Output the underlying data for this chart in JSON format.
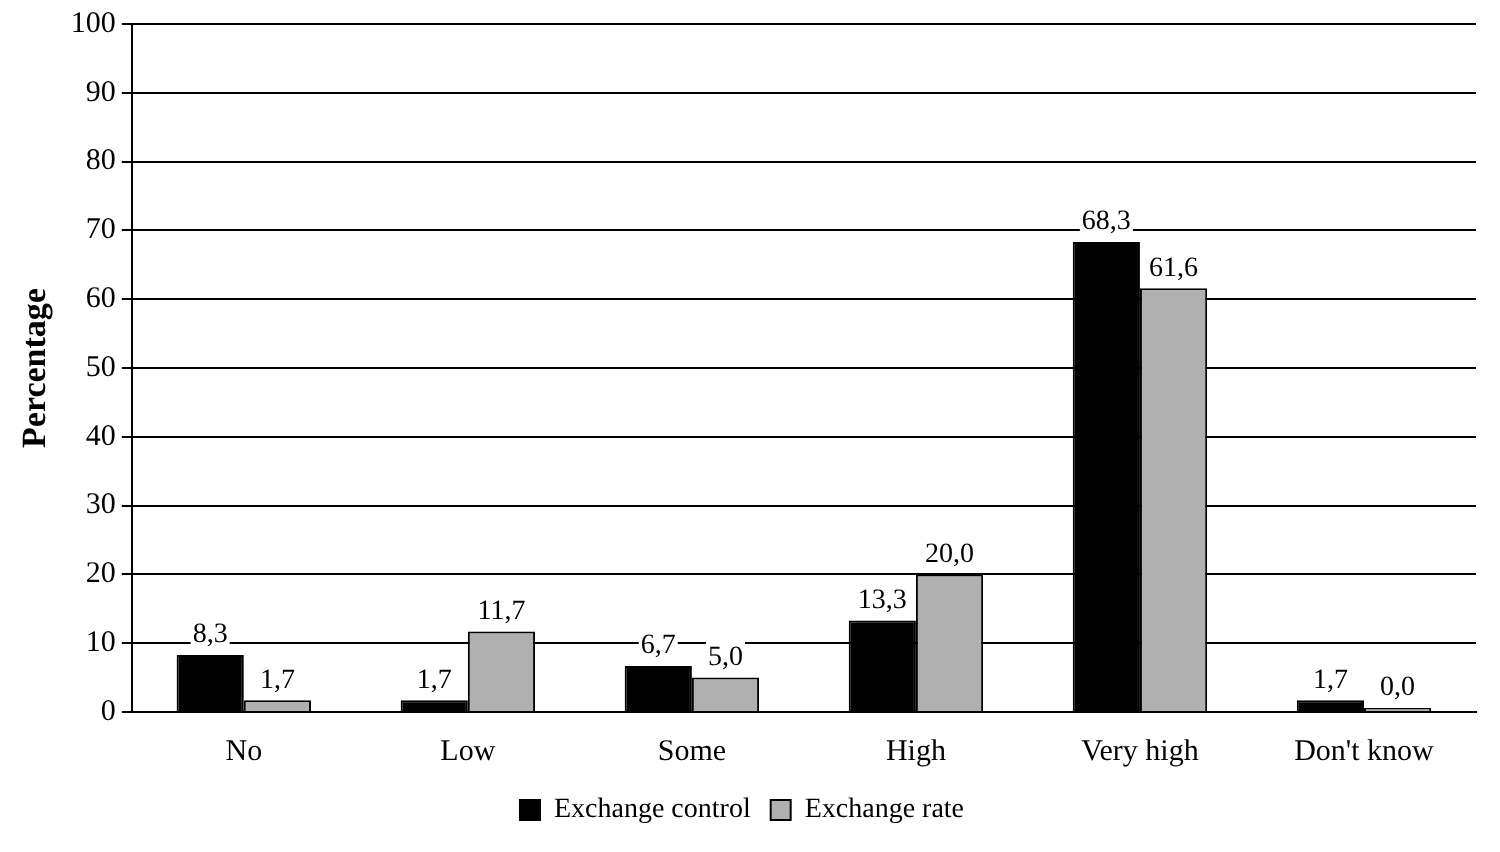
{
  "chart_data": {
    "type": "bar",
    "ylabel": "Percentage",
    "categories": [
      "No",
      "Low",
      "Some",
      "High",
      "Very high",
      "Don't know"
    ],
    "series": [
      {
        "name": "Exchange control",
        "color": "#000000",
        "values": [
          8.3,
          1.7,
          6.7,
          13.3,
          68.3,
          1.7
        ],
        "value_labels": [
          "8,3",
          "1,7",
          "6,7",
          "13,3",
          "68,3",
          "1,7"
        ]
      },
      {
        "name": "Exchange rate",
        "color": "#b0b0b0",
        "values": [
          1.7,
          11.7,
          5.0,
          20.0,
          61.6,
          0.0
        ],
        "value_labels": [
          "1,7",
          "11,7",
          "5,0",
          "20,0",
          "61,6",
          "0,0"
        ]
      }
    ],
    "ylim": [
      0,
      100
    ],
    "yticks": [
      0,
      10,
      20,
      30,
      40,
      50,
      60,
      70,
      80,
      90,
      100
    ],
    "grid": "y",
    "legend": "bottom"
  }
}
